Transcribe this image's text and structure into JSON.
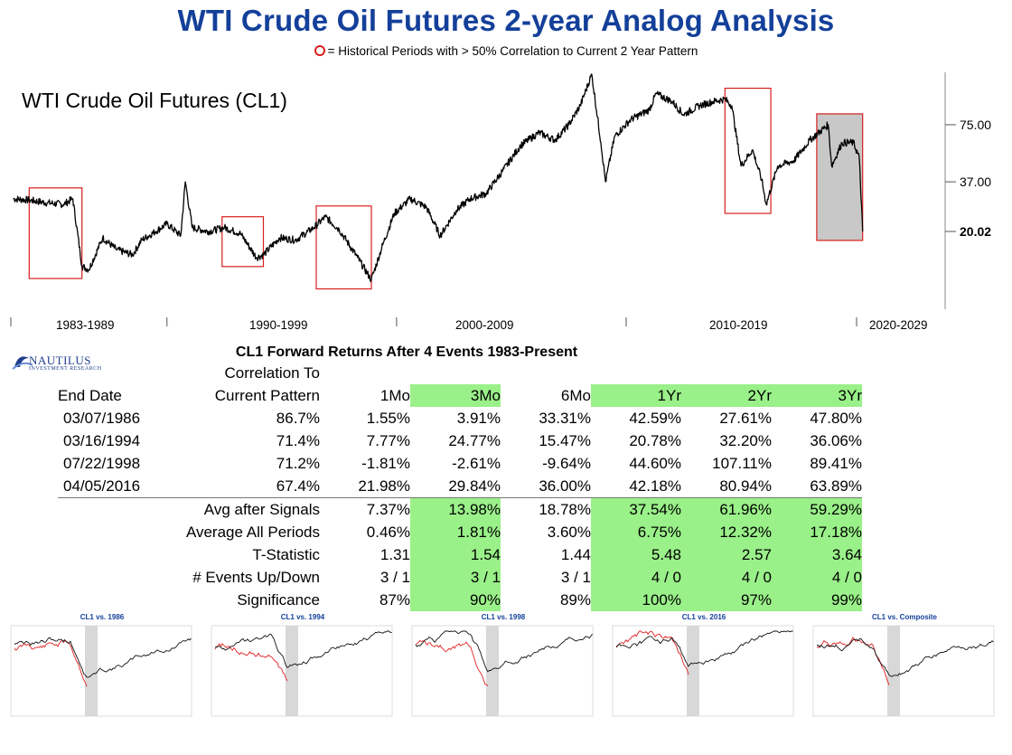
{
  "header": {
    "title": "WTI Crude Oil Futures 2-year Analog Analysis",
    "subtitle": "= Historical Periods with > 50% Correlation to Current 2 Year Pattern"
  },
  "chart_data": [
    {
      "type": "line",
      "title": "WTI Crude Oil Futures (CL1)",
      "y_scale": "log",
      "yticks": [
        "75.00",
        "37.00"
      ],
      "last_value": "20.02",
      "eras": [
        "1983-1989",
        "1990-1999",
        "2000-2009",
        "2010-2019",
        "2020-2029"
      ],
      "x": [
        1983.3,
        1984.0,
        1984.8,
        1985.5,
        1985.9,
        1986.3,
        1986.6,
        1987.2,
        1987.8,
        1988.5,
        1988.9,
        1989.5,
        1990.0,
        1990.6,
        1990.8,
        1991.1,
        1991.8,
        1992.5,
        1993.2,
        1993.9,
        1994.2,
        1994.9,
        1995.6,
        1996.4,
        1996.9,
        1997.5,
        1998.3,
        1998.9,
        1999.4,
        1999.9,
        2000.6,
        2001.3,
        2001.9,
        2002.6,
        2003.2,
        2003.9,
        2004.6,
        2005.4,
        2006.2,
        2006.9,
        2007.5,
        2008.0,
        2008.5,
        2008.9,
        2009.1,
        2009.5,
        2010.2,
        2011.0,
        2011.3,
        2012.0,
        2012.5,
        2013.2,
        2013.8,
        2014.3,
        2014.6,
        2015.0,
        2015.5,
        2015.9,
        2016.1,
        2016.6,
        2017.3,
        2018.0,
        2018.8,
        2018.95,
        2019.4,
        2019.9,
        2020.15,
        2020.3
      ],
      "y": [
        30.0,
        29.5,
        28.5,
        28.0,
        30.0,
        13.0,
        12.5,
        18.5,
        16.0,
        15.0,
        18.0,
        20.0,
        22.0,
        19.0,
        37.0,
        21.0,
        20.0,
        21.0,
        19.5,
        14.5,
        15.0,
        18.5,
        18.0,
        21.0,
        24.0,
        20.5,
        14.5,
        11.0,
        17.0,
        25.0,
        30.0,
        27.0,
        19.0,
        26.0,
        30.0,
        32.0,
        42.0,
        58.0,
        68.0,
        62.0,
        75.0,
        95.0,
        140.0,
        60.0,
        37.0,
        65.0,
        80.0,
        90.0,
        110.0,
        100.0,
        85.0,
        95.0,
        100.0,
        103.0,
        95.0,
        45.0,
        55.0,
        38.0,
        28.0,
        45.0,
        48.0,
        62.0,
        75.0,
        45.0,
        60.0,
        60.0,
        50.0,
        20.02
      ],
      "highlight_ranges": [
        [
          1984.0,
          1986.3
        ],
        [
          1992.4,
          1994.2
        ],
        [
          1996.5,
          1998.9
        ],
        [
          2014.3,
          2016.3
        ],
        [
          2018.3,
          2020.3
        ]
      ],
      "shaded_range": [
        2018.3,
        2020.3
      ]
    },
    {
      "type": "table",
      "title": "CL1 Forward Returns After 4 Events 1983-Present",
      "header_top": "Correlation To",
      "columns": [
        "End Date",
        "Current Pattern",
        "1Mo",
        "3Mo",
        "6Mo",
        "1Yr",
        "2Yr",
        "3Yr"
      ],
      "rows": [
        [
          "03/07/1986",
          "86.7%",
          "1.55%",
          "3.91%",
          "33.31%",
          "42.59%",
          "27.61%",
          "47.80%"
        ],
        [
          "03/16/1994",
          "71.4%",
          "7.77%",
          "24.77%",
          "15.47%",
          "20.78%",
          "32.20%",
          "36.06%"
        ],
        [
          "07/22/1998",
          "71.2%",
          "-1.81%",
          "-2.61%",
          "-9.64%",
          "44.60%",
          "107.11%",
          "89.41%"
        ],
        [
          "04/05/2016",
          "67.4%",
          "21.98%",
          "29.84%",
          "36.00%",
          "42.18%",
          "80.94%",
          "63.89%"
        ]
      ],
      "summary": [
        [
          "Avg after Signals",
          "7.37%",
          "13.98%",
          "18.78%",
          "37.54%",
          "61.96%",
          "59.29%"
        ],
        [
          "Average All Periods",
          "0.46%",
          "1.81%",
          "3.60%",
          "6.75%",
          "12.32%",
          "17.18%"
        ],
        [
          "T-Statistic",
          "1.31",
          "1.54",
          "1.44",
          "5.48",
          "2.57",
          "3.64"
        ],
        [
          "# Events Up/Down",
          "3 / 1",
          "3 / 1",
          "3 / 1",
          "4 / 0",
          "4 / 0",
          "4 / 0"
        ],
        [
          "Significance",
          "87%",
          "90%",
          "89%",
          "100%",
          "97%",
          "99%"
        ]
      ],
      "highlighted_columns": [
        "3Mo",
        "1Yr",
        "2Yr",
        "3Yr"
      ]
    }
  ],
  "brand": {
    "logo": "NAUTILUS",
    "logo_sub": "INVESTMENT RESEARCH",
    "title_color": "#14409a",
    "highlight_color": "#9af089",
    "box_color": "#d81e1e"
  },
  "thumbnails": [
    {
      "title": "CL1 vs. 1986"
    },
    {
      "title": "CL1 vs. 1994"
    },
    {
      "title": "CL1 vs. 1998"
    },
    {
      "title": "CL1 vs. 2016"
    },
    {
      "title": "CL1 vs. Composite"
    }
  ]
}
